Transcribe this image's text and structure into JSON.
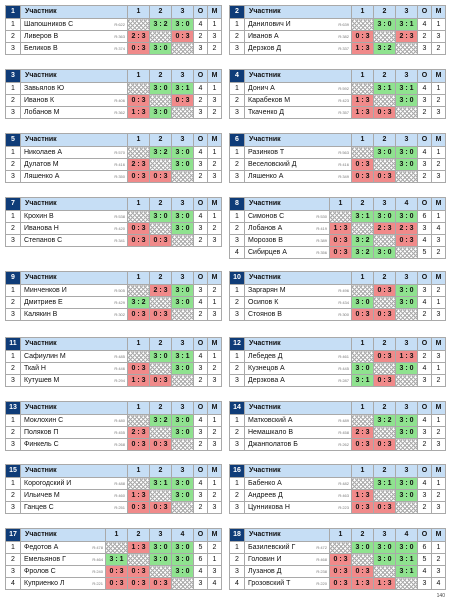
{
  "header_labels": {
    "player": "Участник",
    "points": "О",
    "place": "М"
  },
  "colors": {
    "header": "#c6def5",
    "group_badge": "#0f3c78",
    "win": "#8fe28f",
    "loss": "#f08a8a"
  },
  "footer": {
    "page": "140"
  },
  "groups": [
    {
      "id": "1",
      "players": [
        {
          "no": "1",
          "name": "Шапошников С",
          "rating": "R:622",
          "cells": [
            "",
            "3 : 2",
            "3 : 0"
          ],
          "points": "4",
          "place": "1"
        },
        {
          "no": "2",
          "name": "Ливеров В",
          "rating": "R:363",
          "cells": [
            "2 : 3",
            "",
            "0 : 3"
          ],
          "points": "2",
          "place": "3"
        },
        {
          "no": "3",
          "name": "Беликов В",
          "rating": "R:374",
          "cells": [
            "0 : 3",
            "3 : 0",
            ""
          ],
          "points": "3",
          "place": "2"
        }
      ]
    },
    {
      "id": "2",
      "players": [
        {
          "no": "1",
          "name": "Данилович И",
          "rating": "R:639",
          "cells": [
            "",
            "3 : 0",
            "3 : 1"
          ],
          "points": "4",
          "place": "1"
        },
        {
          "no": "2",
          "name": "Иванов А",
          "rating": "R:382",
          "cells": [
            "0 : 3",
            "",
            "2 : 3"
          ],
          "points": "2",
          "place": "3"
        },
        {
          "no": "3",
          "name": "Дерзков Д",
          "rating": "R:337",
          "cells": [
            "1 : 3",
            "3 : 2",
            ""
          ],
          "points": "3",
          "place": "2"
        }
      ]
    },
    {
      "id": "3",
      "players": [
        {
          "no": "1",
          "name": "Завьялов Ю",
          "rating": "",
          "cells": [
            "",
            "3 : 0",
            "3 : 1"
          ],
          "points": "4",
          "place": "1"
        },
        {
          "no": "2",
          "name": "Иванов К",
          "rating": "R:406",
          "cells": [
            "0 : 3",
            "",
            "0 : 3"
          ],
          "points": "2",
          "place": "3"
        },
        {
          "no": "3",
          "name": "Лобанов М",
          "rating": "R:362",
          "cells": [
            "1 : 3",
            "3 : 0",
            ""
          ],
          "points": "3",
          "place": "2"
        }
      ]
    },
    {
      "id": "4",
      "players": [
        {
          "no": "1",
          "name": "Донич А",
          "rating": "R:592",
          "cells": [
            "",
            "3 : 1",
            "3 : 1"
          ],
          "points": "4",
          "place": "1"
        },
        {
          "no": "2",
          "name": "Карабеков М",
          "rating": "R:423",
          "cells": [
            "1 : 3",
            "",
            "3 : 0"
          ],
          "points": "3",
          "place": "2"
        },
        {
          "no": "3",
          "name": "Ткаченко Д",
          "rating": "R:357",
          "cells": [
            "1 : 3",
            "0 : 3",
            ""
          ],
          "points": "2",
          "place": "3"
        }
      ]
    },
    {
      "id": "5",
      "players": [
        {
          "no": "1",
          "name": "Николаев А",
          "rating": "R:570",
          "cells": [
            "",
            "3 : 2",
            "3 : 0"
          ],
          "points": "4",
          "place": "1"
        },
        {
          "no": "2",
          "name": "Дулатов М",
          "rating": "R:416",
          "cells": [
            "2 : 3",
            "",
            "3 : 0"
          ],
          "points": "3",
          "place": "2"
        },
        {
          "no": "3",
          "name": "Ляшенко А",
          "rating": "R:350",
          "cells": [
            "0 : 3",
            "0 : 3",
            ""
          ],
          "points": "2",
          "place": "3"
        }
      ]
    },
    {
      "id": "6",
      "players": [
        {
          "no": "1",
          "name": "Разинков Т",
          "rating": "R:563",
          "cells": [
            "",
            "3 : 0",
            "3 : 0"
          ],
          "points": "4",
          "place": "1"
        },
        {
          "no": "2",
          "name": "Веселовский Д",
          "rating": "R:416",
          "cells": [
            "0 : 3",
            "",
            "3 : 0"
          ],
          "points": "3",
          "place": "2"
        },
        {
          "no": "3",
          "name": "Ляшенко А",
          "rating": "R:349",
          "cells": [
            "0 : 3",
            "0 : 3",
            ""
          ],
          "points": "2",
          "place": "3"
        }
      ]
    },
    {
      "id": "7",
      "players": [
        {
          "no": "1",
          "name": "Крохин В",
          "rating": "R:538",
          "cells": [
            "",
            "3 : 0",
            "3 : 0"
          ],
          "points": "4",
          "place": "1"
        },
        {
          "no": "2",
          "name": "Иванова Н",
          "rating": "R:420",
          "cells": [
            "0 : 3",
            "",
            "3 : 0"
          ],
          "points": "3",
          "place": "2"
        },
        {
          "no": "3",
          "name": "Степанов С",
          "rating": "R:341",
          "cells": [
            "0 : 3",
            "0 : 3",
            ""
          ],
          "points": "2",
          "place": "3"
        }
      ]
    },
    {
      "id": "8",
      "players": [
        {
          "no": "1",
          "name": "Симонов С",
          "rating": "R:530",
          "cells": [
            "",
            "3 : 1",
            "3 : 0",
            "3 : 0"
          ],
          "points": "6",
          "place": "1"
        },
        {
          "no": "2",
          "name": "Лобанов А",
          "rating": "R:419",
          "cells": [
            "1 : 3",
            "",
            "2 : 3",
            "2 : 3"
          ],
          "points": "3",
          "place": "4"
        },
        {
          "no": "3",
          "name": "Морозов В",
          "rating": "R:389",
          "cells": [
            "0 : 3",
            "3 : 2",
            "",
            "0 : 3"
          ],
          "points": "4",
          "place": "3"
        },
        {
          "no": "4",
          "name": "Сибирцев А",
          "rating": "R:356",
          "cells": [
            "0 : 3",
            "3 : 2",
            "3 : 0",
            ""
          ],
          "points": "5",
          "place": "2"
        }
      ]
    },
    {
      "id": "9",
      "players": [
        {
          "no": "1",
          "name": "Минченков И",
          "rating": "R:505",
          "cells": [
            "",
            "2 : 3",
            "3 : 0"
          ],
          "points": "3",
          "place": "2"
        },
        {
          "no": "2",
          "name": "Дмитриев Е",
          "rating": "R:429",
          "cells": [
            "3 : 2",
            "",
            "3 : 0"
          ],
          "points": "4",
          "place": "1"
        },
        {
          "no": "3",
          "name": "Калякин В",
          "rating": "R:302",
          "cells": [
            "0 : 3",
            "0 : 3",
            ""
          ],
          "points": "2",
          "place": "3"
        }
      ]
    },
    {
      "id": "10",
      "players": [
        {
          "no": "1",
          "name": "Заргарян М",
          "rating": "R:496",
          "cells": [
            "",
            "0 : 3",
            "3 : 0"
          ],
          "points": "3",
          "place": "2"
        },
        {
          "no": "2",
          "name": "Осипов К",
          "rating": "R:434",
          "cells": [
            "3 : 0",
            "",
            "3 : 0"
          ],
          "points": "4",
          "place": "1"
        },
        {
          "no": "3",
          "name": "Стоянов В",
          "rating": "R:300",
          "cells": [
            "0 : 3",
            "0 : 3",
            ""
          ],
          "points": "2",
          "place": "3"
        }
      ]
    },
    {
      "id": "11",
      "players": [
        {
          "no": "1",
          "name": "Сафиулин М",
          "rating": "R:485",
          "cells": [
            "",
            "3 : 0",
            "3 : 1"
          ],
          "points": "4",
          "place": "1"
        },
        {
          "no": "2",
          "name": "Ткай Н",
          "rating": "R:446",
          "cells": [
            "0 : 3",
            "",
            "3 : 0"
          ],
          "points": "3",
          "place": "2"
        },
        {
          "no": "3",
          "name": "Кутушев М",
          "rating": "R:294",
          "cells": [
            "1 : 3",
            "0 : 3",
            ""
          ],
          "points": "2",
          "place": "3"
        }
      ]
    },
    {
      "id": "12",
      "players": [
        {
          "no": "1",
          "name": "Лебедев Д",
          "rating": "R:461",
          "cells": [
            "",
            "0 : 3",
            "1 : 3"
          ],
          "points": "2",
          "place": "3"
        },
        {
          "no": "2",
          "name": "Кузнецов А",
          "rating": "R:445",
          "cells": [
            "3 : 0",
            "",
            "3 : 0"
          ],
          "points": "4",
          "place": "1"
        },
        {
          "no": "3",
          "name": "Дерзкова А",
          "rating": "R:287",
          "cells": [
            "3 : 1",
            "0 : 3",
            ""
          ],
          "points": "3",
          "place": "2"
        }
      ]
    },
    {
      "id": "13",
      "players": [
        {
          "no": "1",
          "name": "Моклохин С",
          "rating": "R:480",
          "cells": [
            "",
            "3 : 2",
            "3 : 0"
          ],
          "points": "4",
          "place": "1"
        },
        {
          "no": "2",
          "name": "Поляков П",
          "rating": "R:455",
          "cells": [
            "2 : 3",
            "",
            "3 : 0"
          ],
          "points": "3",
          "place": "2"
        },
        {
          "no": "3",
          "name": "Финкель С",
          "rating": "R:268",
          "cells": [
            "0 : 3",
            "0 : 3",
            ""
          ],
          "points": "2",
          "place": "3"
        }
      ]
    },
    {
      "id": "14",
      "players": [
        {
          "no": "1",
          "name": "Матковский А",
          "rating": "R:489",
          "cells": [
            "",
            "3 : 2",
            "3 : 0"
          ],
          "points": "4",
          "place": "1"
        },
        {
          "no": "2",
          "name": "Немашкало В",
          "rating": "R:458",
          "cells": [
            "2 : 3",
            "",
            "3 : 0"
          ],
          "points": "3",
          "place": "2"
        },
        {
          "no": "3",
          "name": "Джанполатов Б",
          "rating": "R:262",
          "cells": [
            "0 : 3",
            "0 : 3",
            ""
          ],
          "points": "2",
          "place": "3"
        }
      ]
    },
    {
      "id": "15",
      "players": [
        {
          "no": "1",
          "name": "Корогодский И",
          "rating": "R:488",
          "cells": [
            "",
            "3 : 1",
            "3 : 0"
          ],
          "points": "4",
          "place": "1"
        },
        {
          "no": "2",
          "name": "Ильичев М",
          "rating": "R:460",
          "cells": [
            "1 : 3",
            "",
            "3 : 0"
          ],
          "points": "3",
          "place": "2"
        },
        {
          "no": "3",
          "name": "Ганцев С",
          "rating": "R:251",
          "cells": [
            "0 : 3",
            "0 : 3",
            ""
          ],
          "points": "2",
          "place": "3"
        }
      ]
    },
    {
      "id": "16",
      "players": [
        {
          "no": "1",
          "name": "Бабенко А",
          "rating": "R:482",
          "cells": [
            "",
            "3 : 1",
            "3 : 0"
          ],
          "points": "4",
          "place": "1"
        },
        {
          "no": "2",
          "name": "Андреев Д",
          "rating": "R:463",
          "cells": [
            "1 : 3",
            "",
            "3 : 0"
          ],
          "points": "3",
          "place": "2"
        },
        {
          "no": "3",
          "name": "Цунникова Н",
          "rating": "R:223",
          "cells": [
            "0 : 3",
            "0 : 3",
            ""
          ],
          "points": "2",
          "place": "3"
        }
      ]
    },
    {
      "id": "17",
      "players": [
        {
          "no": "1",
          "name": "Федотов А",
          "rating": "R:478",
          "cells": [
            "",
            "1 : 3",
            "3 : 0",
            "3 : 0"
          ],
          "points": "5",
          "place": "2"
        },
        {
          "no": "2",
          "name": "Емельянов Г",
          "rating": "R:464",
          "cells": [
            "3 : 1",
            "",
            "3 : 0",
            "3 : 0"
          ],
          "points": "6",
          "place": "1"
        },
        {
          "no": "3",
          "name": "Фролов С",
          "rating": "R:240",
          "cells": [
            "0 : 3",
            "0 : 3",
            "",
            "3 : 0"
          ],
          "points": "4",
          "place": "3"
        },
        {
          "no": "4",
          "name": "Куприенко Л",
          "rating": "R:221",
          "cells": [
            "0 : 3",
            "0 : 3",
            "0 : 3",
            ""
          ],
          "points": "3",
          "place": "4"
        }
      ]
    },
    {
      "id": "18",
      "players": [
        {
          "no": "1",
          "name": "Базилевский Г",
          "rating": "R:472",
          "cells": [
            "",
            "3 : 0",
            "3 : 0",
            "3 : 0"
          ],
          "points": "6",
          "place": "1"
        },
        {
          "no": "2",
          "name": "Головин И",
          "rating": "R:468",
          "cells": [
            "0 : 3",
            "",
            "3 : 0",
            "3 : 1"
          ],
          "points": "5",
          "place": "2"
        },
        {
          "no": "3",
          "name": "Лузанов Д",
          "rating": "R:238",
          "cells": [
            "0 : 3",
            "0 : 3",
            "",
            "3 : 1"
          ],
          "points": "4",
          "place": "3"
        },
        {
          "no": "4",
          "name": "Грозовский Т",
          "rating": "R:220",
          "cells": [
            "0 : 3",
            "1 : 3",
            "1 : 3",
            ""
          ],
          "points": "3",
          "place": "4"
        }
      ]
    }
  ]
}
